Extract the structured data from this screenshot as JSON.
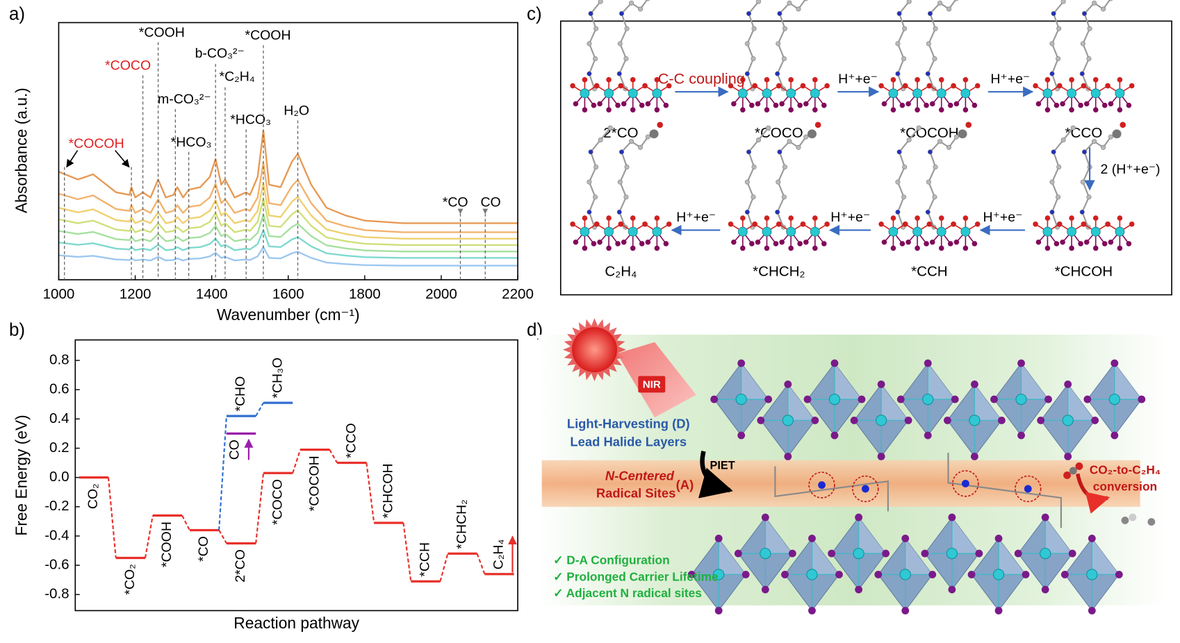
{
  "panel_labels": [
    "a)",
    "b)",
    "c)",
    "d)"
  ],
  "chart_data": [
    {
      "type": "line",
      "x_label": "Wavenumber (cm⁻¹)",
      "y_label": "Absorbance (a.u.)",
      "x": [
        1000,
        1050,
        1090,
        1150,
        1185,
        1190,
        1200,
        1220,
        1240,
        1260,
        1280,
        1300,
        1310,
        1325,
        1340,
        1370,
        1395,
        1410,
        1425,
        1435,
        1460,
        1490,
        1500,
        1520,
        1535,
        1550,
        1580,
        1610,
        1625,
        1660,
        1700,
        1750,
        1800,
        1900,
        2000,
        2100,
        2200
      ],
      "series": [
        {
          "color": "#e79a55",
          "values": [
            4.2,
            3.9,
            4.1,
            3.4,
            3.3,
            3.6,
            3.2,
            3.4,
            3.2,
            3.9,
            3.2,
            3.3,
            3.6,
            3.2,
            3.5,
            3.6,
            4.0,
            4.7,
            3.7,
            3.9,
            3.2,
            3.4,
            3.3,
            4.0,
            5.8,
            3.7,
            3.6,
            4.6,
            4.9,
            3.7,
            2.8,
            2.5,
            2.3,
            2.2,
            2.2,
            2.2,
            2.2
          ]
        },
        {
          "color": "#f2b26e",
          "values": [
            3.35,
            3.13,
            3.28,
            2.75,
            2.68,
            2.9,
            2.6,
            2.75,
            2.6,
            3.13,
            2.6,
            2.68,
            2.9,
            2.6,
            2.83,
            2.9,
            3.2,
            3.73,
            2.98,
            3.13,
            2.6,
            2.75,
            2.68,
            3.2,
            4.55,
            2.98,
            2.9,
            3.65,
            3.88,
            2.98,
            2.3,
            2.08,
            1.93,
            1.85,
            1.85,
            1.85,
            1.85
          ]
        },
        {
          "color": "#f0d070",
          "values": [
            2.8,
            2.62,
            2.74,
            2.32,
            2.26,
            2.44,
            2.2,
            2.32,
            2.2,
            2.62,
            2.2,
            2.26,
            2.44,
            2.2,
            2.38,
            2.44,
            2.68,
            3.1,
            2.5,
            2.62,
            2.2,
            2.32,
            2.26,
            2.68,
            3.76,
            2.5,
            2.44,
            3.04,
            3.22,
            2.5,
            1.96,
            1.78,
            1.66,
            1.6,
            1.6,
            1.6,
            1.6
          ]
        },
        {
          "color": "#cfe07a",
          "values": [
            2.35,
            2.2,
            2.3,
            1.95,
            1.9,
            2.05,
            1.85,
            1.95,
            1.85,
            2.2,
            1.85,
            1.9,
            2.05,
            1.85,
            2,
            2.05,
            2.25,
            2.6,
            2.1,
            2.2,
            1.85,
            1.95,
            1.9,
            2.25,
            3.15,
            2.1,
            2.05,
            2.55,
            2.7,
            2.1,
            1.65,
            1.5,
            1.4,
            1.35,
            1.35,
            1.35,
            1.35
          ]
        },
        {
          "color": "#a6e0a0",
          "values": [
            1.9,
            1.78,
            1.86,
            1.58,
            1.54,
            1.66,
            1.5,
            1.58,
            1.5,
            1.78,
            1.5,
            1.54,
            1.66,
            1.5,
            1.62,
            1.66,
            1.82,
            2.1,
            1.7,
            1.78,
            1.5,
            1.58,
            1.54,
            1.82,
            2.54,
            1.7,
            1.66,
            2.06,
            2.18,
            1.7,
            1.34,
            1.22,
            1.14,
            1.1,
            1.1,
            1.1,
            1.1
          ]
        },
        {
          "color": "#7fd9cf",
          "values": [
            1.45,
            1.36,
            1.42,
            1.21,
            1.18,
            1.27,
            1.15,
            1.21,
            1.15,
            1.36,
            1.15,
            1.18,
            1.27,
            1.15,
            1.24,
            1.27,
            1.39,
            1.6,
            1.3,
            1.36,
            1.15,
            1.21,
            1.18,
            1.39,
            1.93,
            1.3,
            1.27,
            1.57,
            1.66,
            1.3,
            1.03,
            0.94,
            0.88,
            0.85,
            0.85,
            0.85,
            0.85
          ]
        },
        {
          "color": "#9cc8f0",
          "values": [
            0.95,
            0.89,
            0.93,
            0.79,
            0.77,
            0.83,
            0.75,
            0.79,
            0.75,
            0.89,
            0.75,
            0.77,
            0.83,
            0.75,
            0.81,
            0.83,
            0.91,
            1.05,
            0.85,
            0.89,
            0.75,
            0.79,
            0.77,
            0.91,
            1.27,
            0.85,
            0.83,
            1.03,
            1.09,
            0.85,
            0.67,
            0.61,
            0.57,
            0.55,
            0.55,
            0.55,
            0.55
          ]
        }
      ],
      "xlim": [
        1000,
        2200
      ],
      "ylim": [
        0,
        10
      ],
      "xticks": [
        1000,
        1200,
        1400,
        1600,
        1800,
        2000,
        2200
      ],
      "annotations": [
        {
          "text": "*COCOH",
          "color": "#e02020",
          "x": [
            1015,
            1190
          ]
        },
        {
          "text": "*COCO",
          "color": "#e02020",
          "x": [
            1220
          ]
        },
        {
          "text": "*COOH",
          "color": "#000000",
          "x": [
            1260
          ]
        },
        {
          "text": "m-CO₃²⁻",
          "color": "#000000",
          "x": [
            1305
          ]
        },
        {
          "text": "*HCO₃",
          "color": "#000000",
          "x": [
            1340
          ]
        },
        {
          "text": "b-CO₃²⁻",
          "color": "#000000",
          "x": [
            1410
          ]
        },
        {
          "text": "*C₂H₄",
          "color": "#000000",
          "x": [
            1435
          ]
        },
        {
          "text": "*HCO₃",
          "color": "#000000",
          "x": [
            1490
          ]
        },
        {
          "text": "*COOH",
          "color": "#000000",
          "x": [
            1535
          ]
        },
        {
          "text": "H₂O",
          "color": "#000000",
          "x": [
            1625
          ]
        },
        {
          "text": "*CO",
          "color": "#000000",
          "x": [
            2050
          ]
        },
        {
          "text": "CO",
          "color": "#000000",
          "x": [
            2115
          ]
        }
      ]
    },
    {
      "type": "energy-diagram",
      "x_label": "Reaction pathway",
      "y_label": "Free Energy (eV)",
      "ylim": [
        -0.91,
        0.94
      ],
      "yticks": [
        -0.8,
        -0.6,
        -0.4,
        -0.2,
        {
          "value": 0,
          "label": "0.0"
        },
        0.2,
        0.4,
        0.6,
        0.8
      ],
      "series": [
        {
          "color": "#e8302a",
          "values": [
            0,
            -0.55,
            -0.26,
            -0.36,
            -0.45,
            0.03,
            0.19,
            0.1,
            -0.31,
            -0.71,
            -0.52,
            -0.66
          ],
          "labels": [
            "CO₂",
            "*CO₂",
            "*COOH",
            "*CO",
            "2*CO",
            "*COCO",
            "*COCOH",
            "*CCO",
            "*CHCOH",
            "*CCH",
            "*CHCH₂",
            "C₂H₄"
          ]
        },
        {
          "color": "#2f6fd0",
          "values": [
            null,
            null,
            null,
            null,
            0.42,
            0.51,
            null,
            null,
            null,
            null,
            null,
            null
          ],
          "labels": [
            null,
            null,
            null,
            null,
            "*CHO",
            "*CH₃O",
            null,
            null,
            null,
            null,
            null,
            null
          ]
        },
        {
          "color": "#9a1fa8",
          "values": [
            null,
            null,
            null,
            null,
            0.3,
            null,
            null,
            null,
            null,
            null,
            null,
            null
          ],
          "labels": [
            null,
            null,
            null,
            null,
            "CO",
            null,
            null,
            null,
            null,
            null,
            null,
            null
          ]
        }
      ]
    }
  ],
  "diagram_c": {
    "species": [
      "2*CO",
      "*COCO",
      "*COCOH",
      "*CCO",
      "*CHCOH",
      "*CCH",
      "*CHCH₂",
      "C₂H₄"
    ],
    "steps": [
      "C-C coupling",
      "H⁺+e⁻",
      "H⁺+e⁻",
      "2 (H⁺+e⁻)",
      "H⁺+e⁻",
      "H⁺+e⁻",
      "H⁺+e⁻"
    ]
  },
  "diagram_d": {
    "nir": "NIR",
    "donor": [
      "Light-Harvesting (D)",
      "Lead Halide Layers"
    ],
    "piet": "PIET",
    "acceptor": [
      "N-Centered",
      "Radical Sites"
    ],
    "acceptor_tag": "(A)",
    "product": [
      "CO₂-to-C₂H₄",
      "conversion"
    ],
    "features": [
      "✓ D-A Configuration",
      "✓ Prolonged Carrier Lifetime",
      "✓ Adjacent N radical sites"
    ]
  }
}
